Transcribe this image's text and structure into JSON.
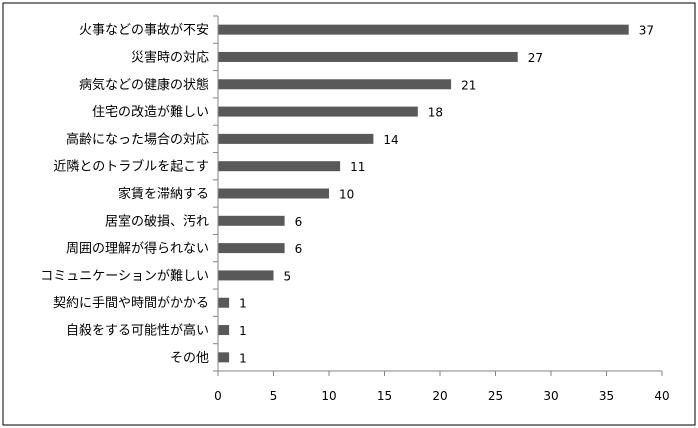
{
  "chart_data": {
    "type": "bar",
    "orientation": "horizontal",
    "categories": [
      "火事などの事故が不安",
      "災害時の対応",
      "病気などの健康の状態",
      "住宅の改造が難しい",
      "高齢になった場合の対応",
      "近隣とのトラブルを起こす",
      "家賃を滞納する",
      "居室の破損、汚れ",
      "周囲の理解が得られない",
      "コミュニケーションが難しい",
      "契約に手間や時間がかかる",
      "自殺をする可能性が高い",
      "その他"
    ],
    "values": [
      37,
      27,
      21,
      18,
      14,
      11,
      10,
      6,
      6,
      5,
      1,
      1,
      1
    ],
    "xlim": [
      0,
      40
    ],
    "xticks": [
      "0",
      "5",
      "10",
      "15",
      "20",
      "25",
      "30",
      "35",
      "40"
    ],
    "bar_color": "#595959",
    "grid": false,
    "legend": "none",
    "data_labels": true
  }
}
